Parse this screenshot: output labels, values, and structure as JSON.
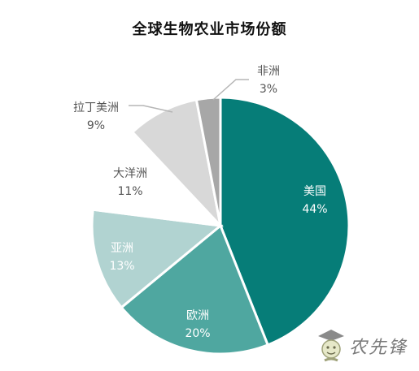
{
  "chart_data": {
    "type": "pie",
    "title": "全球生物农业市场份额",
    "start_angle_deg": 0,
    "direction": "clockwise",
    "slices": [
      {
        "label": "美国",
        "value": 44,
        "value_label": "44%",
        "color": "#067d78",
        "label_position": "inside"
      },
      {
        "label": "欧洲",
        "value": 20,
        "value_label": "20%",
        "color": "#4fa7a0",
        "label_position": "inside"
      },
      {
        "label": "亚洲",
        "value": 13,
        "value_label": "13%",
        "color": "#b1d3d1",
        "label_position": "inside"
      },
      {
        "label": "大洋洲",
        "value": 11,
        "value_label": "11%",
        "color": "#ffffff",
        "label_position": "outside"
      },
      {
        "label": "拉丁美洲",
        "value": 9,
        "value_label": "9%",
        "color": "#d8d8d8",
        "label_position": "outside"
      },
      {
        "label": "非洲",
        "value": 3,
        "value_label": "3%",
        "color": "#a7a7a7",
        "label_position": "outside"
      }
    ]
  },
  "watermark": {
    "text": "农先锋"
  }
}
